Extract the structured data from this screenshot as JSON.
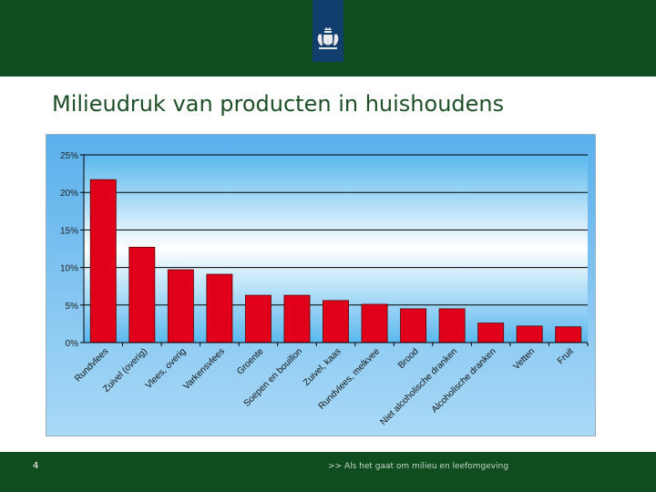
{
  "slide": {
    "title": "Milieudruk van producten in huishoudens",
    "page_number": "4",
    "tagline": ">> Als het gaat om milieu en leefomgeving"
  },
  "colors": {
    "header_green": "#0f4d1e",
    "logo_blue": "#123e6e",
    "bar_red": "#e00019",
    "chart_background_blue": "#6cbcf0"
  },
  "chart_data": {
    "type": "bar",
    "title": "",
    "xlabel": "",
    "ylabel": "",
    "categories": [
      "Rundvlees",
      "Zuivel (overig)",
      "Vlees, overig",
      "Varkensvlees",
      "Groente",
      "Soepen en bouillon",
      "Zuivel, kaas",
      "Rundvlees, melkvee",
      "Brood",
      "Niet alcoholische dranken",
      "Alcoholische dranken",
      "Vetten",
      "Fruit"
    ],
    "values": [
      21.7,
      12.7,
      9.7,
      9.1,
      6.3,
      6.3,
      5.6,
      5.1,
      4.5,
      4.5,
      2.6,
      2.2,
      2.1
    ],
    "ylim": [
      0,
      25
    ],
    "yticks": [
      "0%",
      "5%",
      "10%",
      "15%",
      "20%",
      "25%"
    ],
    "grid": true,
    "legend": "none"
  }
}
